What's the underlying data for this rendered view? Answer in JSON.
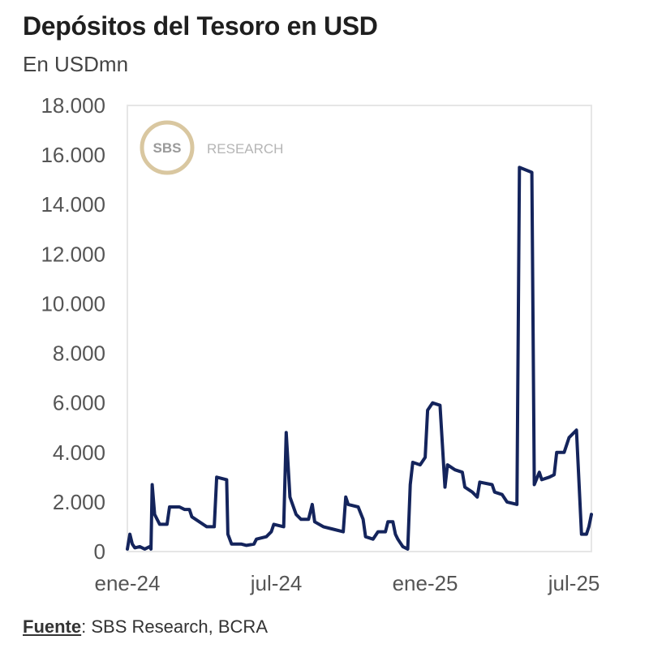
{
  "header": {
    "title": "Depósitos del Tesoro en USD",
    "subtitle": "En USDmn"
  },
  "footer": {
    "source_label": "Fuente",
    "source_text": ": SBS Research, BCRA"
  },
  "watermark": {
    "logo_text": "SBS",
    "text": "RESEARCH"
  },
  "colors": {
    "line": "#14245c",
    "frame": "#e6e6e6",
    "logo_ring": "#d9c7a0"
  },
  "chart_data": {
    "type": "line",
    "title": "Depósitos del Tesoro en USD",
    "ylabel": "En USDmn",
    "xlabel": "",
    "ylim": [
      0,
      18000
    ],
    "yticks": [
      0,
      2000,
      4000,
      6000,
      8000,
      10000,
      12000,
      14000,
      16000,
      18000
    ],
    "ytick_labels": [
      "0",
      "2.000",
      "4.000",
      "6.000",
      "8.000",
      "10.000",
      "12.000",
      "14.000",
      "16.000",
      "18.000"
    ],
    "xlim": [
      0,
      18
    ],
    "x_unit": "months since ene-24",
    "xticks": [
      0,
      6,
      12,
      18
    ],
    "xtick_labels": [
      "ene-24",
      "jul-24",
      "ene-25",
      "jul-25"
    ],
    "grid": false,
    "series": [
      {
        "name": "Depósitos del Tesoro en USD",
        "points": [
          [
            0.0,
            100
          ],
          [
            0.1,
            700
          ],
          [
            0.2,
            300
          ],
          [
            0.3,
            150
          ],
          [
            0.5,
            200
          ],
          [
            0.7,
            100
          ],
          [
            0.9,
            200
          ],
          [
            0.95,
            100
          ],
          [
            1.0,
            2700
          ],
          [
            1.1,
            1500
          ],
          [
            1.3,
            1100
          ],
          [
            1.6,
            1100
          ],
          [
            1.7,
            1800
          ],
          [
            2.1,
            1800
          ],
          [
            2.3,
            1700
          ],
          [
            2.5,
            1700
          ],
          [
            2.6,
            1400
          ],
          [
            2.9,
            1200
          ],
          [
            3.2,
            1000
          ],
          [
            3.5,
            1000
          ],
          [
            3.6,
            3000
          ],
          [
            4.0,
            2900
          ],
          [
            4.05,
            700
          ],
          [
            4.2,
            300
          ],
          [
            4.6,
            300
          ],
          [
            4.8,
            250
          ],
          [
            5.1,
            300
          ],
          [
            5.2,
            500
          ],
          [
            5.6,
            600
          ],
          [
            5.8,
            800
          ],
          [
            5.9,
            1100
          ],
          [
            6.3,
            1000
          ],
          [
            6.4,
            4800
          ],
          [
            6.55,
            2200
          ],
          [
            6.8,
            1500
          ],
          [
            7.0,
            1300
          ],
          [
            7.3,
            1300
          ],
          [
            7.45,
            1900
          ],
          [
            7.55,
            1200
          ],
          [
            7.9,
            1000
          ],
          [
            8.3,
            900
          ],
          [
            8.7,
            800
          ],
          [
            8.8,
            2200
          ],
          [
            8.9,
            1900
          ],
          [
            9.3,
            1800
          ],
          [
            9.5,
            1300
          ],
          [
            9.6,
            600
          ],
          [
            9.9,
            500
          ],
          [
            10.1,
            800
          ],
          [
            10.4,
            800
          ],
          [
            10.5,
            1200
          ],
          [
            10.7,
            1200
          ],
          [
            10.8,
            700
          ],
          [
            10.9,
            500
          ],
          [
            11.1,
            200
          ],
          [
            11.3,
            100
          ],
          [
            11.4,
            2700
          ],
          [
            11.5,
            3600
          ],
          [
            11.8,
            3500
          ],
          [
            12.0,
            3800
          ],
          [
            12.1,
            5700
          ],
          [
            12.3,
            6000
          ],
          [
            12.6,
            5900
          ],
          [
            12.8,
            2600
          ],
          [
            12.9,
            3500
          ],
          [
            13.2,
            3300
          ],
          [
            13.5,
            3200
          ],
          [
            13.6,
            2600
          ],
          [
            13.9,
            2400
          ],
          [
            14.1,
            2200
          ],
          [
            14.2,
            2800
          ],
          [
            14.7,
            2700
          ],
          [
            14.8,
            2400
          ],
          [
            15.1,
            2300
          ],
          [
            15.3,
            2000
          ],
          [
            15.7,
            1900
          ],
          [
            15.8,
            15500
          ],
          [
            16.3,
            15300
          ],
          [
            16.4,
            2700
          ],
          [
            16.6,
            3200
          ],
          [
            16.7,
            2900
          ],
          [
            17.0,
            3000
          ],
          [
            17.2,
            3100
          ],
          [
            17.3,
            4000
          ],
          [
            17.6,
            4000
          ],
          [
            17.8,
            4600
          ],
          [
            18.1,
            4900
          ],
          [
            18.3,
            700
          ],
          [
            18.5,
            700
          ],
          [
            18.6,
            1000
          ],
          [
            18.7,
            1500
          ]
        ]
      }
    ]
  }
}
